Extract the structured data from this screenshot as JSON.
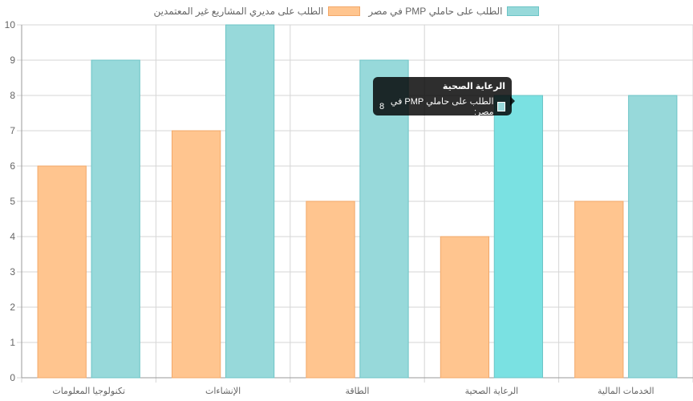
{
  "chart_data": {
    "type": "bar",
    "categories": [
      "تكنولوجيا المعلومات",
      "الإنشاءات",
      "الطاقة",
      "الرعاية الصحية",
      "الخدمات المالية"
    ],
    "series": [
      {
        "name": "الطلب على مديري المشاريع غير المعتمدين",
        "values": [
          6,
          7,
          5,
          4,
          5
        ],
        "color": "#ffc58f",
        "border": "#f2a869"
      },
      {
        "name": "الطلب على حاملي PMP في مصر",
        "values": [
          9,
          10,
          9,
          8,
          8
        ],
        "color": "#97d9da",
        "border": "#6cc4c6"
      }
    ],
    "ylim": [
      0,
      10
    ],
    "yticks": [
      "0",
      "1",
      "2",
      "3",
      "4",
      "5",
      "6",
      "7",
      "8",
      "9",
      "10"
    ],
    "grid": true,
    "legend_position": "top",
    "hovered": {
      "category_index": 3,
      "series_index": 1,
      "highlight_color": "#7ae1e2"
    }
  },
  "legend": {
    "item1_label": "الطلب على حاملي PMP في مصر",
    "item2_label": "الطلب على مديري المشاريع غير المعتمدين",
    "item1_color": "#97d9da",
    "item2_color": "#ffc58f"
  },
  "tooltip": {
    "title": "الرعاية الصحية",
    "series_label": "الطلب على حاملي PMP في مصر:",
    "value": "8",
    "swatch_color": "#97d9da"
  }
}
